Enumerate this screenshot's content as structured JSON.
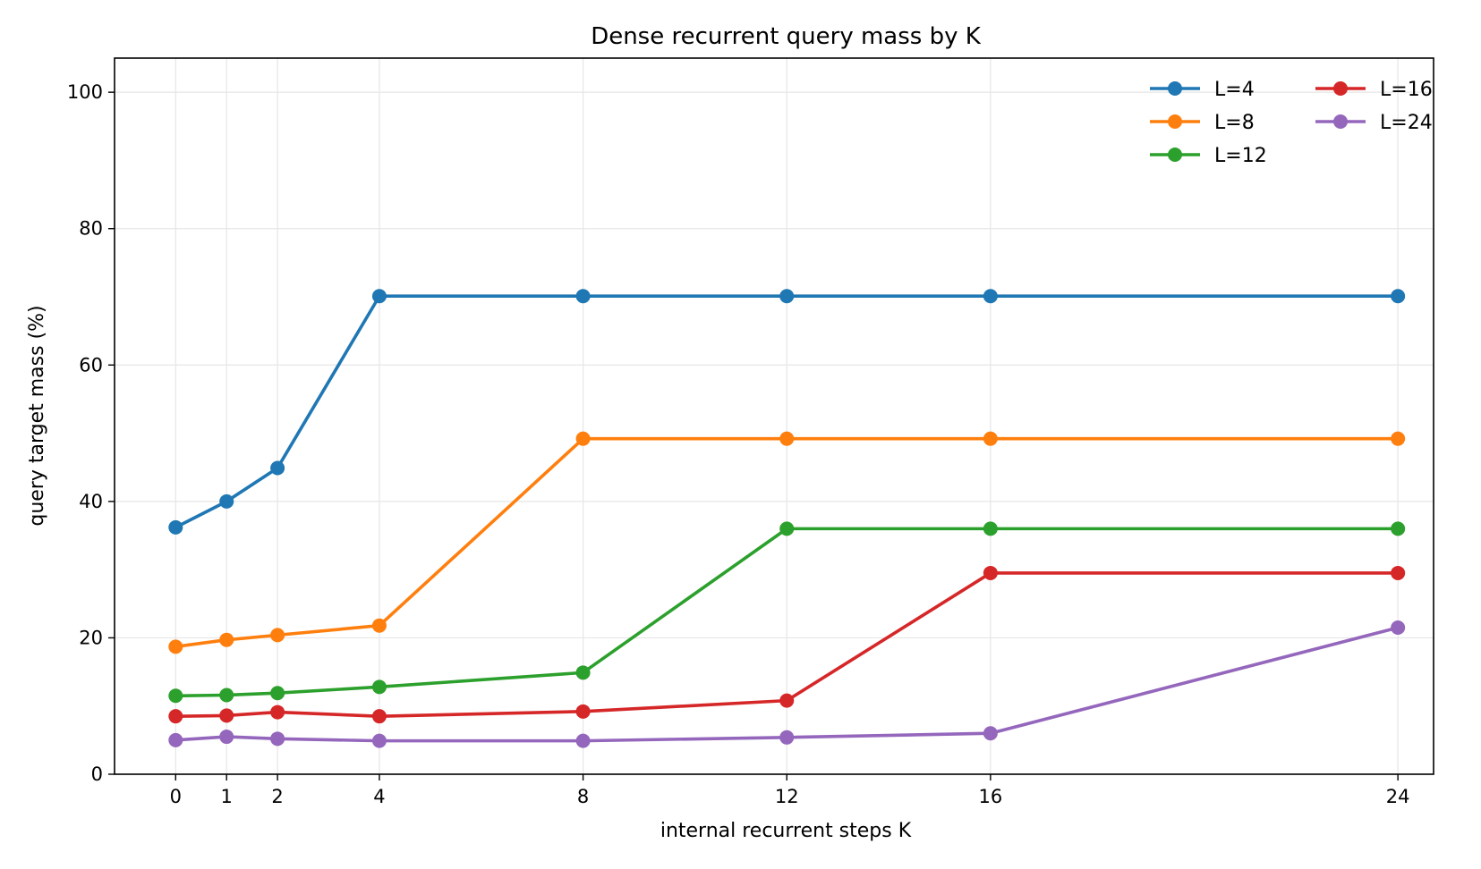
{
  "chart_data": {
    "type": "line",
    "title": "Dense recurrent query mass by K",
    "xlabel": "internal recurrent steps K",
    "ylabel": "query target mass (%)",
    "x": [
      0,
      1,
      2,
      4,
      8,
      12,
      16,
      24
    ],
    "x_ticks": [
      0,
      1,
      2,
      4,
      8,
      12,
      16,
      24
    ],
    "y_ticks": [
      0,
      20,
      40,
      60,
      80,
      100
    ],
    "xlim": [
      -1.2,
      24.7
    ],
    "ylim": [
      0,
      105
    ],
    "grid": true,
    "legend_placement": "top-right",
    "series": [
      {
        "name": "L=4",
        "color": "#1f77b4",
        "values": [
          36.2,
          40.0,
          44.9,
          70.1,
          70.1,
          70.1,
          70.1,
          70.1
        ]
      },
      {
        "name": "L=8",
        "color": "#ff7f0e",
        "values": [
          18.7,
          19.7,
          20.4,
          21.8,
          49.2,
          49.2,
          49.2,
          49.2
        ]
      },
      {
        "name": "L=12",
        "color": "#2ca02c",
        "values": [
          11.5,
          11.6,
          11.9,
          12.8,
          14.9,
          36.0,
          36.0,
          36.0
        ]
      },
      {
        "name": "L=16",
        "color": "#d62728",
        "values": [
          8.5,
          8.6,
          9.1,
          8.5,
          9.2,
          10.8,
          29.5,
          29.5
        ]
      },
      {
        "name": "L=24",
        "color": "#9467bd",
        "values": [
          5.0,
          5.5,
          5.2,
          4.9,
          4.9,
          5.4,
          6.0,
          21.5
        ]
      }
    ]
  }
}
